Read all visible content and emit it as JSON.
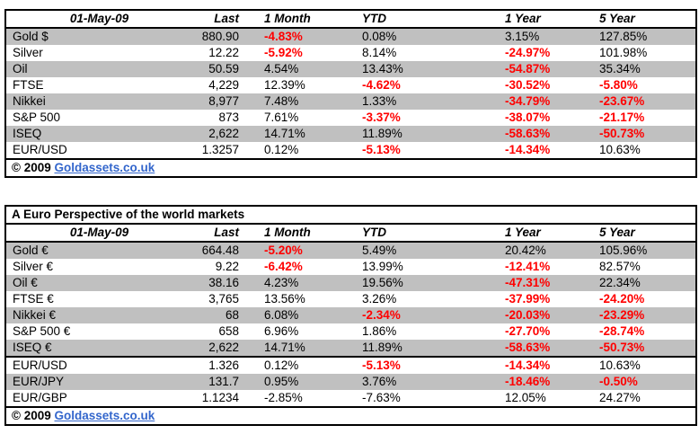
{
  "colors": {
    "negative_text": "#FF0000",
    "stripe_row": "#C0C0C0",
    "link_blue": "#3366CC",
    "border": "#000000",
    "background": "#FFFFFF"
  },
  "table1": {
    "header": {
      "date_label": "01-May-09",
      "columns": [
        "Last",
        "1 Month",
        "YTD",
        "1 Year",
        "5 Year"
      ]
    },
    "sections": [
      {
        "rows": [
          {
            "label": "Gold $",
            "last": "880.90",
            "pct": [
              {
                "v": "-4.83%",
                "red": true
              },
              {
                "v": "0.08%"
              },
              {
                "v": "3.15%"
              },
              {
                "v": "127.85%"
              }
            ]
          },
          {
            "label": "Silver",
            "last": "12.22",
            "pct": [
              {
                "v": "-5.92%",
                "red": true
              },
              {
                "v": "8.14%"
              },
              {
                "v": "-24.97%",
                "red": true
              },
              {
                "v": "101.98%"
              }
            ]
          },
          {
            "label": "Oil",
            "last": "50.59",
            "pct": [
              {
                "v": "4.54%"
              },
              {
                "v": "13.43%"
              },
              {
                "v": "-54.87%",
                "red": true
              },
              {
                "v": "35.34%"
              }
            ]
          },
          {
            "label": "FTSE",
            "last": "4,229",
            "pct": [
              {
                "v": "12.39%"
              },
              {
                "v": "-4.62%",
                "red": true
              },
              {
                "v": "-30.52%",
                "red": true
              },
              {
                "v": "-5.80%",
                "red": true
              }
            ]
          },
          {
            "label": "Nikkei",
            "last": "8,977",
            "pct": [
              {
                "v": "7.48%"
              },
              {
                "v": "1.33%"
              },
              {
                "v": "-34.79%",
                "red": true
              },
              {
                "v": "-23.67%",
                "red": true
              }
            ]
          },
          {
            "label": "S&P 500",
            "last": "873",
            "pct": [
              {
                "v": "7.61%"
              },
              {
                "v": "-3.37%",
                "red": true
              },
              {
                "v": "-38.07%",
                "red": true
              },
              {
                "v": "-21.17%",
                "red": true
              }
            ]
          },
          {
            "label": "ISEQ",
            "last": "2,622",
            "pct": [
              {
                "v": "14.71%"
              },
              {
                "v": "11.89%"
              },
              {
                "v": "-58.63%",
                "red": true
              },
              {
                "v": "-50.73%",
                "red": true
              }
            ]
          },
          {
            "label": "EUR/USD",
            "last": "1.3257",
            "pct": [
              {
                "v": "0.12%"
              },
              {
                "v": "-5.13%",
                "red": true
              },
              {
                "v": "-14.34%",
                "red": true
              },
              {
                "v": "10.63%"
              }
            ]
          }
        ]
      }
    ],
    "footer": {
      "copyright": "© 2009",
      "link_text": "Goldassets.co.uk"
    }
  },
  "table2": {
    "title": "A Euro Perspective of the world markets",
    "header": {
      "date_label": "01-May-09",
      "columns": [
        "Last",
        "1 Month",
        "YTD",
        "1 Year",
        "5 Year"
      ]
    },
    "sections": [
      {
        "rows": [
          {
            "label": "Gold €",
            "last": "664.48",
            "pct": [
              {
                "v": "-5.20%",
                "red": true
              },
              {
                "v": "5.49%"
              },
              {
                "v": "20.42%"
              },
              {
                "v": "105.96%"
              }
            ]
          },
          {
            "label": "Silver €",
            "last": "9.22",
            "pct": [
              {
                "v": "-6.42%",
                "red": true
              },
              {
                "v": "13.99%"
              },
              {
                "v": "-12.41%",
                "red": true
              },
              {
                "v": "82.57%"
              }
            ]
          },
          {
            "label": "Oil €",
            "last": "38.16",
            "pct": [
              {
                "v": "4.23%"
              },
              {
                "v": "19.56%"
              },
              {
                "v": "-47.31%",
                "red": true
              },
              {
                "v": "22.34%"
              }
            ]
          },
          {
            "label": "FTSE €",
            "last": "3,765",
            "pct": [
              {
                "v": "13.56%"
              },
              {
                "v": "3.26%"
              },
              {
                "v": "-37.99%",
                "red": true
              },
              {
                "v": "-24.20%",
                "red": true
              }
            ]
          },
          {
            "label": "Nikkei €",
            "last": "68",
            "pct": [
              {
                "v": "6.08%"
              },
              {
                "v": "-2.34%",
                "red": true
              },
              {
                "v": "-20.03%",
                "red": true
              },
              {
                "v": "-23.29%",
                "red": true
              }
            ]
          },
          {
            "label": "S&P 500 €",
            "last": "658",
            "pct": [
              {
                "v": "6.96%"
              },
              {
                "v": "1.86%"
              },
              {
                "v": "-27.70%",
                "red": true
              },
              {
                "v": "-28.74%",
                "red": true
              }
            ]
          },
          {
            "label": "ISEQ €",
            "last": "2,622",
            "pct": [
              {
                "v": "14.71%"
              },
              {
                "v": "11.89%"
              },
              {
                "v": "-58.63%",
                "red": true
              },
              {
                "v": "-50.73%",
                "red": true
              }
            ]
          }
        ]
      },
      {
        "rows": [
          {
            "label": "EUR/USD",
            "last": "1.326",
            "pct": [
              {
                "v": "0.12%"
              },
              {
                "v": "-5.13%",
                "red": true
              },
              {
                "v": "-14.34%",
                "red": true
              },
              {
                "v": "10.63%"
              }
            ]
          },
          {
            "label": "EUR/JPY",
            "last": "131.7",
            "pct": [
              {
                "v": "0.95%"
              },
              {
                "v": "3.76%"
              },
              {
                "v": "-18.46%",
                "red": true
              },
              {
                "v": "-0.50%",
                "red": true
              }
            ]
          },
          {
            "label": "EUR/GBP",
            "last": "1.1234",
            "pct": [
              {
                "v": "-2.85%"
              },
              {
                "v": "-7.63%"
              },
              {
                "v": "12.05%"
              },
              {
                "v": "24.27%"
              }
            ]
          }
        ]
      }
    ],
    "footer": {
      "copyright": "© 2009",
      "link_text": "Goldassets.co.uk"
    }
  }
}
